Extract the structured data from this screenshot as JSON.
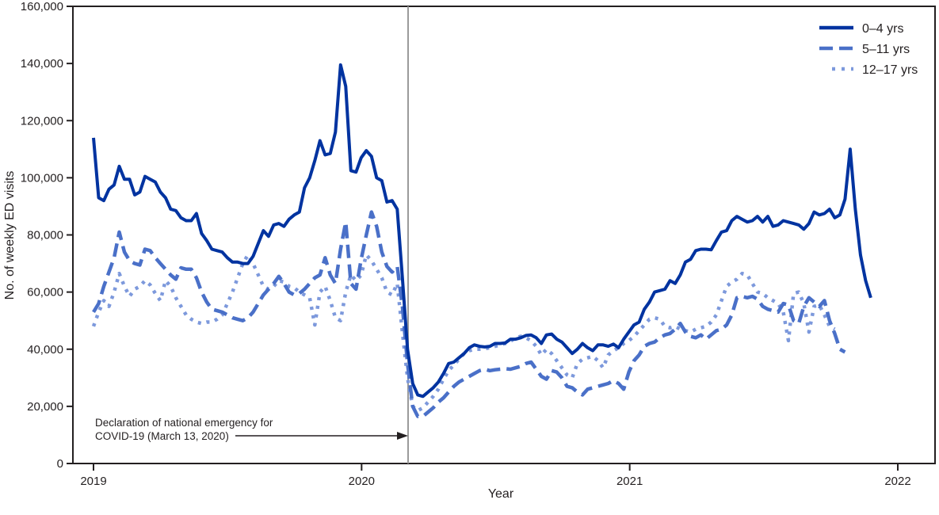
{
  "chart_data": {
    "type": "line",
    "title": "",
    "xlabel": "Year",
    "ylabel": "No. of weekly ED visits",
    "ylim": [
      0,
      160000
    ],
    "yticks": [
      0,
      20000,
      40000,
      60000,
      80000,
      100000,
      120000,
      140000,
      160000
    ],
    "ytick_labels": [
      "0",
      "20,000",
      "40,000",
      "60,000",
      "80,000",
      "100,000",
      "120,000",
      "140,000",
      "160,000"
    ],
    "xticks": [
      2019,
      2020,
      2021,
      2022
    ],
    "xtick_labels": [
      "2019",
      "2020",
      "2021",
      "2022"
    ],
    "grid": false,
    "legend_position": "upper right",
    "annotation": {
      "line1": "Declaration of national emergency for",
      "line2": "COVID-19 (March 13, 2020)",
      "date": "2020-03-13",
      "x_year": 2020.196
    },
    "x_unit": "decimal year (approx. weekly)",
    "x_start": 2019.0,
    "x_step": 0.0192,
    "series": [
      {
        "name": "0–4 yrs",
        "color": "#0033a0",
        "style": "solid",
        "values": [
          114000,
          93000,
          92000,
          96000,
          97500,
          104000,
          99500,
          99500,
          94000,
          95000,
          100500,
          99500,
          98500,
          95000,
          93000,
          89000,
          88500,
          86000,
          85000,
          85000,
          87500,
          80500,
          78000,
          75000,
          74500,
          74000,
          72000,
          70500,
          70500,
          70000,
          70000,
          72500,
          77000,
          81500,
          79500,
          83500,
          84000,
          83000,
          85500,
          87000,
          88000,
          96500,
          100000,
          106000,
          113000,
          108000,
          108500,
          116000,
          139500,
          132000,
          102500,
          102000,
          107000,
          109500,
          107500,
          100000,
          99000,
          91500,
          92000,
          89000,
          65000,
          40000,
          28000,
          24000,
          23500,
          25000,
          26500,
          28500,
          31500,
          35000,
          35500,
          37000,
          38500,
          40500,
          41500,
          41000,
          40800,
          41000,
          42000,
          42000,
          42200,
          43500,
          43500,
          44000,
          44800,
          45000,
          44000,
          42000,
          45000,
          45300,
          43500,
          42500,
          40500,
          38500,
          40000,
          42000,
          40500,
          39500,
          41500,
          41500,
          41000,
          41800,
          40500,
          43500,
          46000,
          48500,
          49500,
          54000,
          56500,
          60000,
          60500,
          61000,
          64000,
          63000,
          66000,
          70500,
          71500,
          74500,
          75000,
          75000,
          74800,
          78000,
          81000,
          81500,
          85000,
          86500,
          85500,
          84500,
          85000,
          86500,
          84500,
          86500,
          83000,
          83500,
          85000,
          84500,
          84000,
          83500,
          82000,
          84000,
          88000,
          87000,
          87500,
          89000,
          86000,
          87000,
          92500,
          110000,
          89000,
          73000,
          64000,
          58000
        ]
      },
      {
        "name": "5–11 yrs",
        "color": "#4a70c8",
        "style": "dashed",
        "values": [
          53000,
          56000,
          62000,
          67000,
          72000,
          81000,
          74000,
          71000,
          70000,
          69500,
          75000,
          74500,
          72000,
          70000,
          68000,
          66000,
          64500,
          68500,
          68000,
          68000,
          65000,
          60000,
          56500,
          54000,
          53500,
          53000,
          52000,
          51000,
          50500,
          50000,
          51000,
          53000,
          56000,
          59000,
          61000,
          63000,
          65500,
          63000,
          60000,
          59000,
          59500,
          61000,
          63000,
          65000,
          66000,
          72000,
          66000,
          63000,
          75000,
          84500,
          63000,
          61000,
          71500,
          80000,
          88000,
          83000,
          74000,
          69000,
          67000,
          69000,
          55000,
          35000,
          20000,
          16500,
          16500,
          18000,
          19500,
          21500,
          23000,
          25000,
          27000,
          28500,
          29500,
          30500,
          31500,
          32500,
          33000,
          32500,
          32800,
          33000,
          33200,
          33000,
          33500,
          34000,
          35000,
          35500,
          33000,
          30500,
          29500,
          32500,
          32000,
          30000,
          27000,
          26500,
          25000,
          24000,
          26000,
          26500,
          27000,
          27500,
          28000,
          29000,
          28000,
          26000,
          32000,
          36000,
          38000,
          41000,
          42000,
          42500,
          44000,
          45000,
          45500,
          47000,
          49000,
          46000,
          44500,
          44000,
          45000,
          43500,
          45000,
          46500,
          47000,
          48500,
          52000,
          58000,
          58500,
          58000,
          58500,
          57500,
          55000,
          54000,
          53500,
          53000,
          56000,
          55500,
          50000,
          49000,
          55000,
          58000,
          56500,
          55000,
          57000,
          50000,
          45500,
          40000,
          39000
        ]
      },
      {
        "name": "12–17 yrs",
        "color": "#7d99dc",
        "style": "dotted",
        "values": [
          48000,
          53000,
          57000,
          55000,
          60000,
          66500,
          62000,
          58500,
          61000,
          62000,
          64000,
          62500,
          59500,
          57000,
          64000,
          62000,
          58000,
          55000,
          52000,
          50500,
          49500,
          49000,
          49500,
          49500,
          50500,
          52000,
          56000,
          60000,
          65000,
          70000,
          73000,
          70000,
          66000,
          62000,
          61000,
          62000,
          64000,
          63500,
          62000,
          61500,
          60000,
          59000,
          58000,
          48500,
          60000,
          62000,
          57000,
          51000,
          50000,
          60000,
          66000,
          64000,
          66000,
          73000,
          71000,
          68000,
          65000,
          60000,
          59000,
          63000,
          46000,
          30000,
          20000,
          18500,
          19500,
          21500,
          23500,
          26000,
          29500,
          32500,
          34500,
          36500,
          38500,
          39500,
          40000,
          40000,
          40200,
          40500,
          41000,
          41500,
          42000,
          42800,
          44000,
          44500,
          44000,
          43000,
          41000,
          38000,
          40000,
          38500,
          36000,
          33500,
          31000,
          30000,
          35000,
          36500,
          37000,
          37500,
          36000,
          33500,
          38000,
          39500,
          40500,
          42000,
          43000,
          44500,
          46500,
          48500,
          50500,
          51000,
          50500,
          48000,
          47500,
          48000,
          47000,
          46500,
          46000,
          47000,
          47500,
          48000,
          49500,
          52000,
          57000,
          62000,
          63500,
          64500,
          66500,
          66000,
          63000,
          60000,
          59500,
          58000,
          57000,
          56000,
          53000,
          43000,
          59500,
          60000,
          56000,
          46000,
          55000,
          55500,
          52000,
          48000,
          47000
        ]
      }
    ]
  },
  "axes": {
    "x_title": "Year",
    "y_title": "No. of weekly ED visits"
  },
  "legend": {
    "items": [
      {
        "label": "0–4 yrs",
        "color": "#0033a0",
        "style": "solid"
      },
      {
        "label": "5–11 yrs",
        "color": "#4a70c8",
        "style": "dashed"
      },
      {
        "label": "12–17 yrs",
        "color": "#7d99dc",
        "style": "dotted"
      }
    ]
  },
  "annotation": {
    "line1": "Declaration of national emergency for",
    "line2": "COVID-19 (March 13, 2020)"
  }
}
